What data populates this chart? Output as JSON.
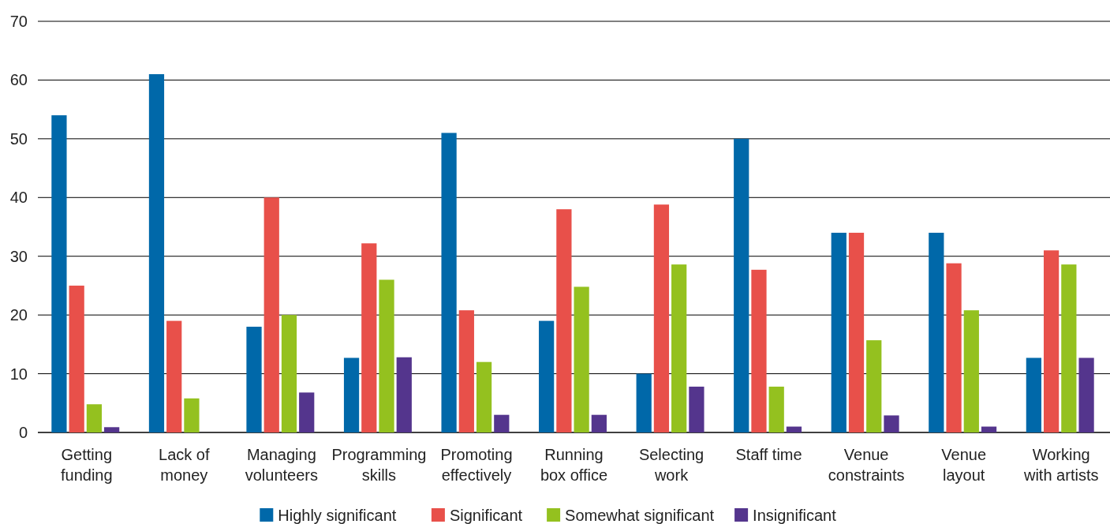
{
  "chart_data": {
    "type": "bar",
    "categories": [
      "Getting\nfunding",
      "Lack of\nmoney",
      "Managing\nvolunteers",
      "Programming\nskills",
      "Promoting\neffectively",
      "Running\nbox office",
      "Selecting\nwork",
      "Staff time",
      "Venue\nconstraints",
      "Venue\nlayout",
      "Working\nwith artists"
    ],
    "series": [
      {
        "name": "Highly significant",
        "color": "#0068a9",
        "values": [
          54,
          61,
          18,
          12.7,
          51,
          19,
          10,
          50,
          34,
          34,
          12.7
        ]
      },
      {
        "name": "Significant",
        "color": "#e8504a",
        "values": [
          25,
          19,
          40,
          32.2,
          20.8,
          38,
          38.8,
          27.7,
          34,
          28.8,
          31
        ]
      },
      {
        "name": "Somewhat significant",
        "color": "#94c11f",
        "values": [
          4.8,
          5.8,
          20,
          26,
          12,
          24.8,
          28.6,
          7.8,
          15.7,
          20.8,
          28.6
        ]
      },
      {
        "name": "Insignificant",
        "color": "#54358d",
        "values": [
          0.9,
          null,
          6.8,
          12.8,
          3,
          3,
          7.8,
          1,
          2.9,
          1,
          12.7
        ]
      }
    ],
    "ylim": [
      0,
      70
    ],
    "yticks": [
      0,
      10,
      20,
      30,
      40,
      50,
      60,
      70
    ],
    "grid": "y",
    "legend": "bottom"
  }
}
